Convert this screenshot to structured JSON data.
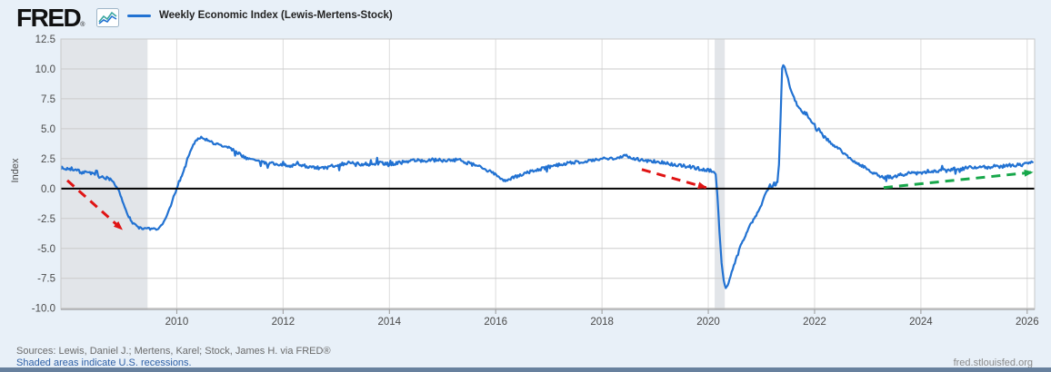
{
  "header": {
    "logo_text": "FRED",
    "logo_registered": "®",
    "legend": {
      "label": "Weekly Economic Index (Lewis-Mertens-Stock)",
      "swatch_color": "#2272d2"
    }
  },
  "footer": {
    "sources_line": "Sources: Lewis, Daniel J.; Mertens, Karel; Stock, James H. via FRED®",
    "recessions_note": "Shaded areas indicate U.S. recessions.",
    "site_link": "fred.stlouisfed.org"
  },
  "chart_data": {
    "type": "line",
    "title": "Weekly Economic Index (Lewis-Mertens-Stock)",
    "xlabel": "",
    "ylabel": "Index",
    "x_domain": [
      2007.82,
      2026.14
    ],
    "y_domain": [
      -10.1,
      12.5
    ],
    "x_ticks": [
      "2010",
      "2012",
      "2014",
      "2016",
      "2018",
      "2020",
      "2022",
      "2024",
      "2026"
    ],
    "y_ticks": [
      "12.5",
      "10.0",
      "7.5",
      "5.0",
      "2.5",
      "0.0",
      "-2.5",
      "-5.0",
      "-7.5",
      "-10.0"
    ],
    "grid": true,
    "zero_line_color": "#000000",
    "line_color": "#2272d2",
    "grid_color": "#cbcbcb",
    "vgrid_color": "#dcdcdc",
    "recession_color": "#e2e5e9",
    "recession_bands": [
      [
        2007.82,
        2009.45
      ],
      [
        2020.12,
        2020.31
      ]
    ],
    "noise_amplitude": 0.15,
    "legend_position": "top-left",
    "series": [
      {
        "name": "Weekly Economic Index (Lewis-Mertens-Stock)",
        "points": [
          [
            2007.82,
            1.75
          ],
          [
            2007.9,
            1.6
          ],
          [
            2008.0,
            1.75
          ],
          [
            2008.08,
            1.5
          ],
          [
            2008.16,
            1.45
          ],
          [
            2008.25,
            1.3
          ],
          [
            2008.33,
            1.45
          ],
          [
            2008.42,
            1.2
          ],
          [
            2008.5,
            1.1
          ],
          [
            2008.58,
            0.95
          ],
          [
            2008.65,
            0.8
          ],
          [
            2008.7,
            0.9
          ],
          [
            2008.75,
            0.75
          ],
          [
            2008.83,
            0.35
          ],
          [
            2008.92,
            -0.3
          ],
          [
            2009.0,
            -1.3
          ],
          [
            2009.08,
            -2.2
          ],
          [
            2009.17,
            -2.9
          ],
          [
            2009.25,
            -3.15
          ],
          [
            2009.33,
            -3.35
          ],
          [
            2009.42,
            -3.3
          ],
          [
            2009.5,
            -3.45
          ],
          [
            2009.58,
            -3.35
          ],
          [
            2009.67,
            -3.3
          ],
          [
            2009.72,
            -3.1
          ],
          [
            2009.79,
            -2.5
          ],
          [
            2009.87,
            -1.6
          ],
          [
            2009.94,
            -0.7
          ],
          [
            2010.0,
            -0.05
          ],
          [
            2010.06,
            0.7
          ],
          [
            2010.13,
            1.5
          ],
          [
            2010.2,
            2.5
          ],
          [
            2010.27,
            3.3
          ],
          [
            2010.33,
            3.8
          ],
          [
            2010.4,
            4.15
          ],
          [
            2010.46,
            4.35
          ],
          [
            2010.52,
            4.2
          ],
          [
            2010.58,
            4.0
          ],
          [
            2010.67,
            3.85
          ],
          [
            2010.75,
            3.7
          ],
          [
            2010.83,
            3.6
          ],
          [
            2010.92,
            3.45
          ],
          [
            2011.0,
            3.4
          ],
          [
            2011.08,
            3.15
          ],
          [
            2011.17,
            2.9
          ],
          [
            2011.25,
            2.7
          ],
          [
            2011.33,
            2.55
          ],
          [
            2011.42,
            2.4
          ],
          [
            2011.5,
            2.3
          ],
          [
            2011.58,
            2.2
          ],
          [
            2011.67,
            2.15
          ],
          [
            2011.75,
            2.1
          ],
          [
            2011.83,
            2.05
          ],
          [
            2011.92,
            2.0
          ],
          [
            2012.0,
            1.95
          ],
          [
            2012.17,
            1.95
          ],
          [
            2012.33,
            2.0
          ],
          [
            2012.5,
            1.8
          ],
          [
            2012.67,
            1.65
          ],
          [
            2012.83,
            1.8
          ],
          [
            2012.92,
            1.9
          ],
          [
            2013.0,
            1.95
          ],
          [
            2013.17,
            2.1
          ],
          [
            2013.33,
            2.2
          ],
          [
            2013.5,
            1.95
          ],
          [
            2013.67,
            2.05
          ],
          [
            2013.83,
            2.15
          ],
          [
            2014.0,
            2.05
          ],
          [
            2014.17,
            2.15
          ],
          [
            2014.33,
            2.25
          ],
          [
            2014.5,
            2.4
          ],
          [
            2014.67,
            2.3
          ],
          [
            2014.83,
            2.4
          ],
          [
            2015.0,
            2.35
          ],
          [
            2015.17,
            2.4
          ],
          [
            2015.33,
            2.35
          ],
          [
            2015.5,
            2.1
          ],
          [
            2015.67,
            1.85
          ],
          [
            2015.83,
            1.55
          ],
          [
            2015.95,
            1.3
          ],
          [
            2016.05,
            1.0
          ],
          [
            2016.13,
            0.75
          ],
          [
            2016.2,
            0.65
          ],
          [
            2016.3,
            0.85
          ],
          [
            2016.42,
            1.05
          ],
          [
            2016.54,
            1.25
          ],
          [
            2016.67,
            1.45
          ],
          [
            2016.83,
            1.6
          ],
          [
            2017.0,
            1.8
          ],
          [
            2017.17,
            1.95
          ],
          [
            2017.33,
            2.1
          ],
          [
            2017.5,
            2.2
          ],
          [
            2017.67,
            2.25
          ],
          [
            2017.83,
            2.35
          ],
          [
            2018.0,
            2.45
          ],
          [
            2018.17,
            2.55
          ],
          [
            2018.33,
            2.6
          ],
          [
            2018.46,
            2.75
          ],
          [
            2018.54,
            2.6
          ],
          [
            2018.67,
            2.45
          ],
          [
            2018.83,
            2.35
          ],
          [
            2019.0,
            2.25
          ],
          [
            2019.17,
            2.15
          ],
          [
            2019.33,
            2.0
          ],
          [
            2019.5,
            1.9
          ],
          [
            2019.67,
            1.8
          ],
          [
            2019.83,
            1.65
          ],
          [
            2019.95,
            1.55
          ],
          [
            2020.04,
            1.55
          ],
          [
            2020.1,
            1.4
          ],
          [
            2020.14,
            1.2
          ],
          [
            2020.17,
            -0.5
          ],
          [
            2020.21,
            -3.6
          ],
          [
            2020.25,
            -6.2
          ],
          [
            2020.29,
            -7.7
          ],
          [
            2020.33,
            -8.35
          ],
          [
            2020.38,
            -7.9
          ],
          [
            2020.44,
            -7.0
          ],
          [
            2020.5,
            -6.2
          ],
          [
            2020.56,
            -5.3
          ],
          [
            2020.63,
            -4.5
          ],
          [
            2020.7,
            -3.9
          ],
          [
            2020.77,
            -3.2
          ],
          [
            2020.85,
            -2.6
          ],
          [
            2020.92,
            -2.1
          ],
          [
            2021.0,
            -1.4
          ],
          [
            2021.04,
            -0.8
          ],
          [
            2021.08,
            -0.35
          ],
          [
            2021.12,
            -0.1
          ],
          [
            2021.16,
            0.35
          ],
          [
            2021.2,
            0.1
          ],
          [
            2021.24,
            0.45
          ],
          [
            2021.27,
            0.3
          ],
          [
            2021.3,
            0.55
          ],
          [
            2021.33,
            2.0
          ],
          [
            2021.36,
            6.0
          ],
          [
            2021.39,
            10.0
          ],
          [
            2021.41,
            10.35
          ],
          [
            2021.44,
            10.1
          ],
          [
            2021.47,
            9.6
          ],
          [
            2021.5,
            9.2
          ],
          [
            2021.54,
            8.4
          ],
          [
            2021.58,
            7.9
          ],
          [
            2021.63,
            7.4
          ],
          [
            2021.67,
            7.0
          ],
          [
            2021.71,
            6.8
          ],
          [
            2021.75,
            6.5
          ],
          [
            2021.79,
            6.3
          ],
          [
            2021.83,
            6.45
          ],
          [
            2021.88,
            6.0
          ],
          [
            2021.92,
            5.7
          ],
          [
            2021.96,
            5.5
          ],
          [
            2022.0,
            5.2
          ],
          [
            2022.04,
            4.85
          ],
          [
            2022.08,
            5.05
          ],
          [
            2022.13,
            4.6
          ],
          [
            2022.17,
            4.35
          ],
          [
            2022.25,
            4.05
          ],
          [
            2022.33,
            3.75
          ],
          [
            2022.42,
            3.45
          ],
          [
            2022.5,
            3.15
          ],
          [
            2022.58,
            2.85
          ],
          [
            2022.67,
            2.55
          ],
          [
            2022.75,
            2.25
          ],
          [
            2022.83,
            2.05
          ],
          [
            2022.92,
            1.85
          ],
          [
            2023.0,
            1.6
          ],
          [
            2023.08,
            1.4
          ],
          [
            2023.17,
            1.2
          ],
          [
            2023.25,
            1.0
          ],
          [
            2023.33,
            0.9
          ],
          [
            2023.42,
            1.0
          ],
          [
            2023.5,
            0.95
          ],
          [
            2023.58,
            1.1
          ],
          [
            2023.67,
            1.2
          ],
          [
            2023.75,
            1.25
          ],
          [
            2023.83,
            1.3
          ],
          [
            2023.92,
            1.25
          ],
          [
            2024.0,
            1.35
          ],
          [
            2024.13,
            1.45
          ],
          [
            2024.25,
            1.4
          ],
          [
            2024.38,
            1.55
          ],
          [
            2024.5,
            1.5
          ],
          [
            2024.63,
            1.65
          ],
          [
            2024.75,
            1.6
          ],
          [
            2024.88,
            1.75
          ],
          [
            2025.0,
            1.8
          ],
          [
            2025.13,
            1.85
          ],
          [
            2025.25,
            1.75
          ],
          [
            2025.38,
            1.85
          ],
          [
            2025.5,
            1.8
          ],
          [
            2025.63,
            1.95
          ],
          [
            2025.75,
            1.9
          ],
          [
            2025.88,
            2.0
          ],
          [
            2026.0,
            2.05
          ],
          [
            2026.1,
            2.2
          ]
        ]
      }
    ],
    "annotations": [
      {
        "type": "arrow",
        "style": "dashed",
        "color": "#e01414",
        "from": [
          2007.94,
          0.68
        ],
        "to": [
          2008.97,
          -3.41
        ]
      },
      {
        "type": "arrow",
        "style": "dashed",
        "color": "#e01414",
        "from": [
          2018.75,
          1.59
        ],
        "to": [
          2019.96,
          0.08
        ]
      },
      {
        "type": "arrow",
        "style": "dashed",
        "color": "#17a74a",
        "from": [
          2023.3,
          0.08
        ],
        "to": [
          2026.1,
          1.36
        ]
      }
    ]
  }
}
